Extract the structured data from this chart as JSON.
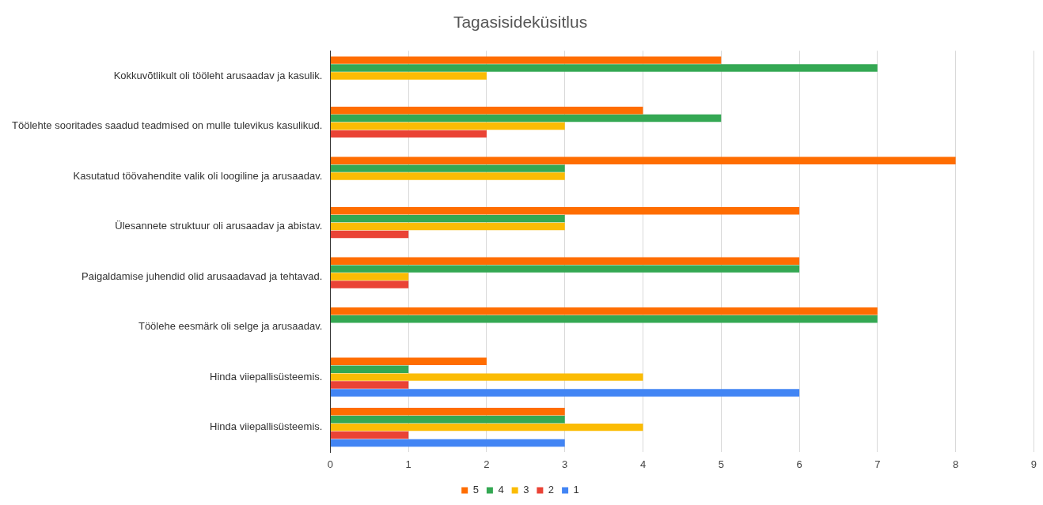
{
  "chart_data": {
    "type": "bar",
    "orientation": "horizontal",
    "title": "Tagasisideküsitlus",
    "categories": [
      "Kokkuvõtlikult oli tööleht arusaadav ja kasulik.",
      "Töölehte sooritades saadud teadmised on mulle tulevikus kasulikud.",
      "Kasutatud töövahendite valik oli loogiline ja arusaadav.",
      "Ülesannete struktuur oli arusaadav ja abistav.",
      "Paigaldamise juhendid olid arusaadavad ja tehtavad.",
      "Töölehe eesmärk oli selge ja arusaadav.",
      "Hinda viiepallisüsteemis.",
      "Hinda viiepallisüsteemis."
    ],
    "series": [
      {
        "name": "5",
        "color": "#ff6d01",
        "values": [
          5,
          4,
          8,
          6,
          6,
          7,
          2,
          3
        ]
      },
      {
        "name": "4",
        "color": "#34a853",
        "values": [
          7,
          5,
          3,
          3,
          6,
          7,
          1,
          3
        ]
      },
      {
        "name": "3",
        "color": "#fbbc04",
        "values": [
          2,
          3,
          3,
          3,
          1,
          null,
          4,
          4
        ]
      },
      {
        "name": "2",
        "color": "#ea4335",
        "values": [
          null,
          2,
          null,
          1,
          1,
          null,
          1,
          1
        ]
      },
      {
        "name": "1",
        "color": "#4285f4",
        "values": [
          null,
          null,
          null,
          null,
          null,
          null,
          6,
          3
        ]
      }
    ],
    "xlim": [
      0,
      9
    ],
    "xticks": [
      0,
      1,
      2,
      3,
      4,
      5,
      6,
      7,
      8,
      9
    ],
    "grid": "x",
    "legend": "bottom"
  }
}
